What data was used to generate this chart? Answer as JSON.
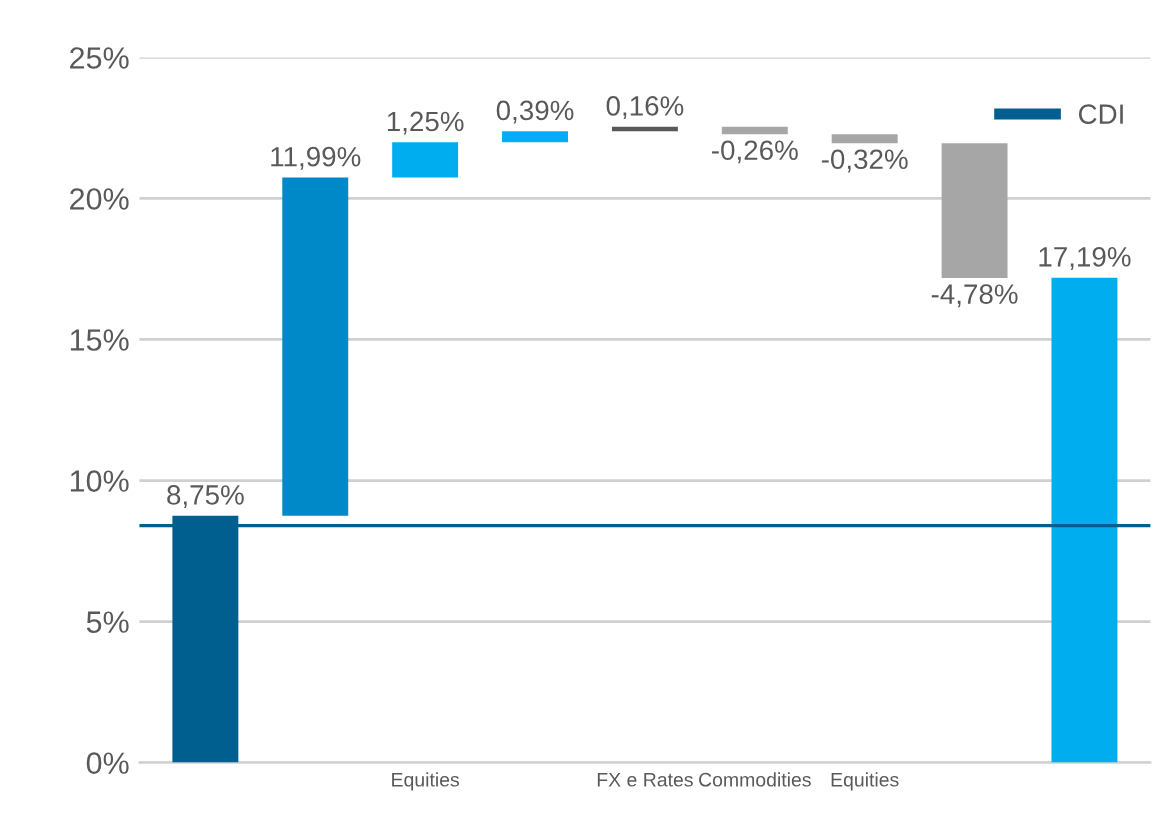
{
  "chart_data": {
    "type": "bar",
    "categories": [
      null,
      null,
      "Equities",
      null,
      "FX e Rates",
      "Commodities",
      "Equities",
      null,
      null
    ],
    "values": [
      8.75,
      11.99,
      1.25,
      0.39,
      0.16,
      -0.26,
      -0.32,
      -4.78,
      17.19
    ],
    "base": [
      0,
      8.75,
      20.74,
      21.99,
      22.38,
      22.54,
      22.28,
      21.96,
      0
    ],
    "colors": [
      "#005f8f",
      "#0089c8",
      "#00aeef",
      "#00aeef",
      "#595959",
      "#a6a6a6",
      "#a6a6a6",
      "#a6a6a6",
      "#00aeef"
    ],
    "value_labels": [
      "8,75%",
      "11,99%",
      "1,25%",
      "0,39%",
      "0,16%",
      "-0,26%",
      "-0,32%",
      "-4,78%",
      "17,19%"
    ],
    "ylim": [
      0,
      25
    ],
    "yticks": [
      {
        "value": 0,
        "label": "0%"
      },
      {
        "value": 5,
        "label": "5%"
      },
      {
        "value": 10,
        "label": "10%"
      },
      {
        "value": 15,
        "label": "15%"
      },
      {
        "value": 20,
        "label": "20%"
      },
      {
        "value": 25,
        "label": "25%"
      }
    ],
    "ref_lines": [
      {
        "axis": "y",
        "value": 8.4,
        "label": "CDI",
        "color": "#005f8f"
      }
    ],
    "grid": "y",
    "legend": "top right"
  }
}
